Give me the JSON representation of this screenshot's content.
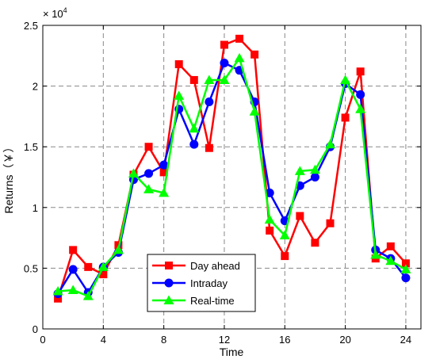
{
  "chart_data": {
    "type": "line",
    "xlabel": "Time",
    "ylabel": "Returns（￥）",
    "y_multiplier": "× 10",
    "y_multiplier_exp": "4",
    "xlim": [
      0,
      25
    ],
    "ylim": [
      0,
      2.5
    ],
    "xticks": [
      0,
      4,
      8,
      12,
      16,
      20,
      24
    ],
    "yticks": [
      0,
      0.5,
      1,
      1.5,
      2,
      2.5
    ],
    "grid": true,
    "legend_position": "bottom-center",
    "x": [
      1,
      2,
      3,
      4,
      5,
      6,
      7,
      8,
      9,
      10,
      11,
      12,
      13,
      14,
      15,
      16,
      17,
      18,
      19,
      20,
      21,
      22,
      23,
      24
    ],
    "series": [
      {
        "name": "Day ahead",
        "color": "#ff0000",
        "marker": "square",
        "values": [
          0.25,
          0.65,
          0.51,
          0.45,
          0.69,
          1.27,
          1.5,
          1.29,
          2.18,
          2.05,
          1.49,
          2.34,
          2.39,
          2.26,
          0.81,
          0.6,
          0.93,
          0.71,
          0.87,
          1.74,
          2.12,
          0.58,
          0.68,
          0.54
        ]
      },
      {
        "name": "Intraday",
        "color": "#0000ff",
        "marker": "circle",
        "values": [
          0.29,
          0.49,
          0.3,
          0.51,
          0.63,
          1.23,
          1.28,
          1.35,
          1.81,
          1.52,
          1.87,
          2.19,
          2.13,
          1.87,
          1.12,
          0.89,
          1.18,
          1.25,
          1.5,
          2.02,
          1.93,
          0.65,
          0.58,
          0.42
        ]
      },
      {
        "name": "Real-time",
        "color": "#00ff00",
        "marker": "triangle",
        "values": [
          0.31,
          0.32,
          0.27,
          0.51,
          0.65,
          1.28,
          1.15,
          1.12,
          1.92,
          1.65,
          2.05,
          2.05,
          2.23,
          1.79,
          0.9,
          0.77,
          1.3,
          1.31,
          1.52,
          2.05,
          1.81,
          0.61,
          0.56,
          0.49
        ]
      }
    ]
  }
}
